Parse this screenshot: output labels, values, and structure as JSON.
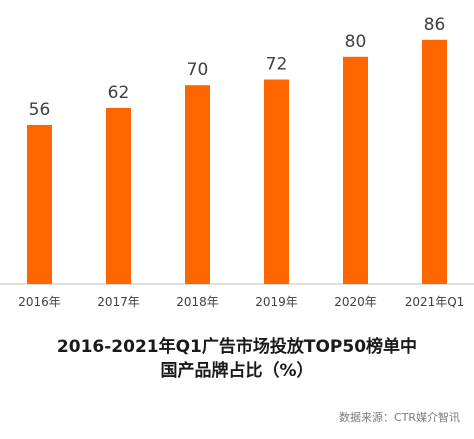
{
  "chart_data": {
    "type": "bar",
    "categories": [
      "2016年",
      "2017年",
      "2018年",
      "2019年",
      "2020年",
      "2021年Q1"
    ],
    "values": [
      56,
      62,
      70,
      72,
      80,
      86
    ],
    "title_lines": [
      "2016-2021年Q1广告市场投放TOP50榜单中",
      "国产品牌占比（%）"
    ],
    "xlabel": "",
    "ylabel": "",
    "ylim": [
      0,
      100
    ],
    "grid": false,
    "legend": "none",
    "data_labels": true
  },
  "colors": {
    "bar": "#ff6600",
    "axis": "#bfbfbf",
    "text": "#404040"
  },
  "source": "数据来源：CTR媒介智讯"
}
